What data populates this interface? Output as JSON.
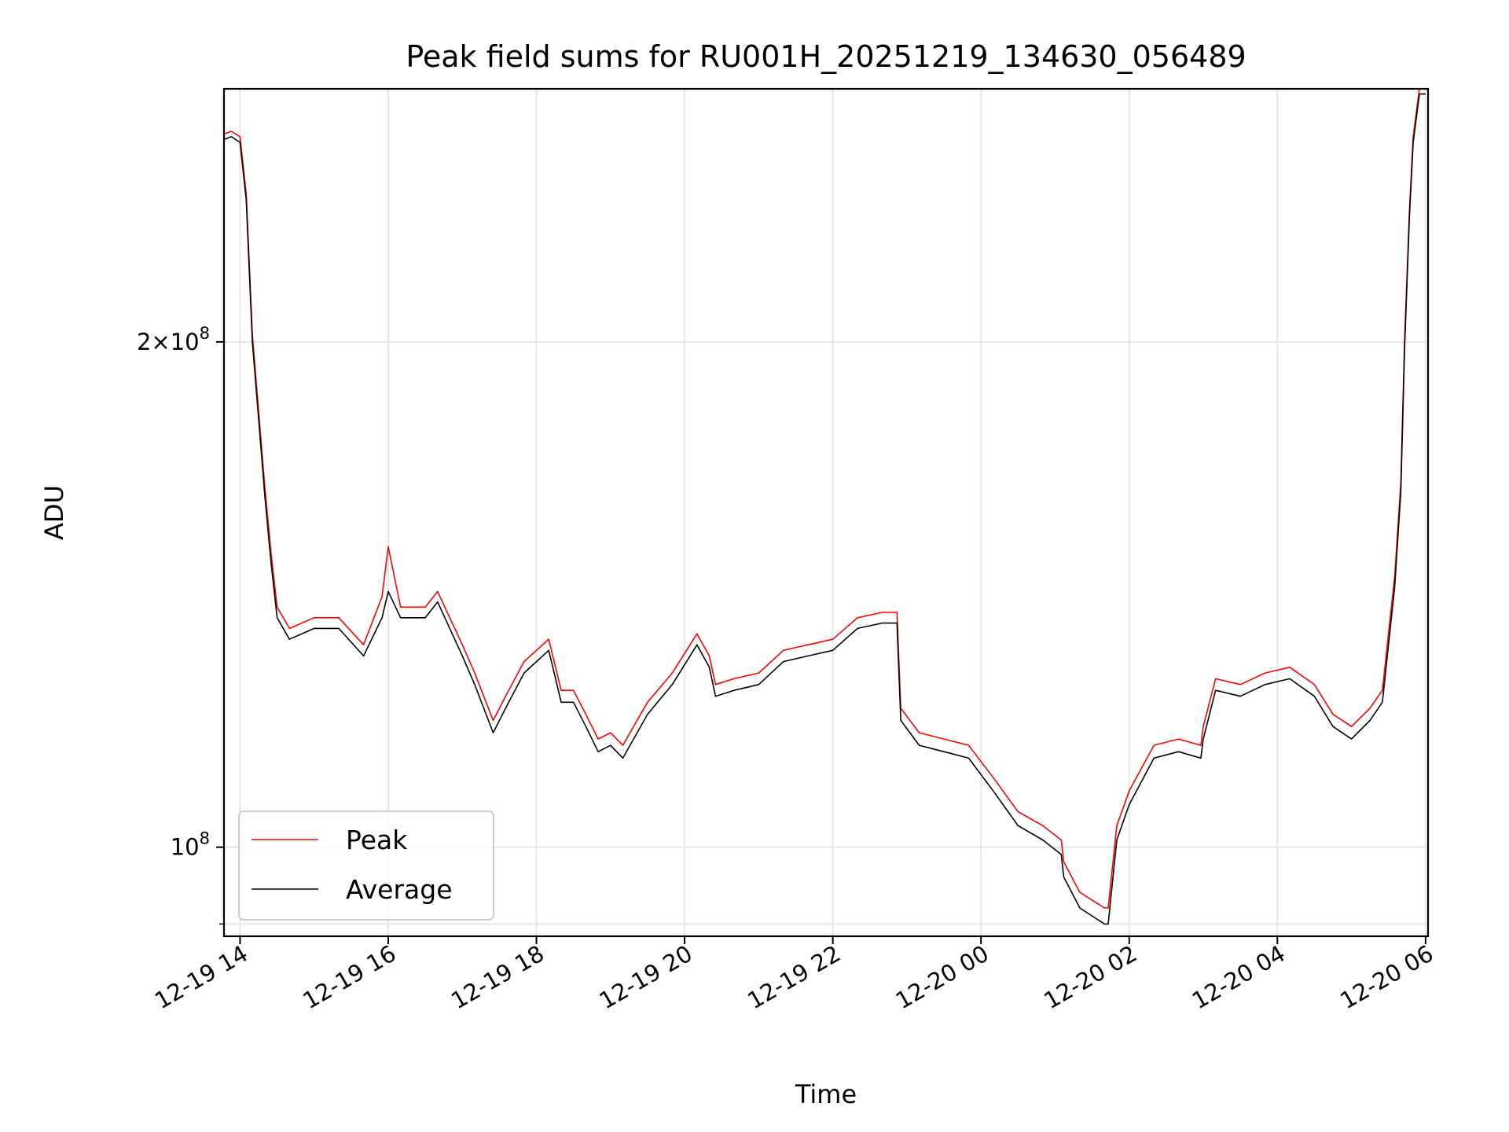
{
  "chart_data": {
    "type": "line",
    "title": "Peak field sums for RU001H_20251219_134630_056489",
    "xlabel": "Time",
    "ylabel": "ADU",
    "y_scale": "log",
    "ylim": [
      88500000,
      283000000
    ],
    "xlim": [
      "2025-12-19 13:47",
      "2025-12-20 06:02"
    ],
    "grid": true,
    "legend_position": "lower-left",
    "x_tick_labels": [
      "12-19 14",
      "12-19 16",
      "12-19 18",
      "12-19 20",
      "12-19 22",
      "12-20 00",
      "12-20 02",
      "12-20 04",
      "12-20 06"
    ],
    "x_ticks": [
      "2025-12-19 14:00",
      "2025-12-19 16:00",
      "2025-12-19 18:00",
      "2025-12-19 20:00",
      "2025-12-19 22:00",
      "2025-12-20 00:00",
      "2025-12-20 02:00",
      "2025-12-20 04:00",
      "2025-12-20 06:00"
    ],
    "y_ticks": [
      {
        "value": 200000000,
        "mantissa": "2",
        "exponent": "8"
      },
      {
        "value": 100000000,
        "mantissa": "",
        "exponent": "8"
      }
    ],
    "series": [
      {
        "name": "Peak",
        "color": "#ff0000",
        "x": [
          "2025-12-19 13:47",
          "2025-12-19 13:53",
          "2025-12-19 14:00",
          "2025-12-19 14:05",
          "2025-12-19 14:10",
          "2025-12-19 14:15",
          "2025-12-19 14:20",
          "2025-12-19 14:25",
          "2025-12-19 14:30",
          "2025-12-19 14:40",
          "2025-12-19 15:00",
          "2025-12-19 15:20",
          "2025-12-19 15:40",
          "2025-12-19 15:55",
          "2025-12-19 16:00",
          "2025-12-19 16:10",
          "2025-12-19 16:30",
          "2025-12-19 16:40",
          "2025-12-19 17:00",
          "2025-12-19 17:10",
          "2025-12-19 17:25",
          "2025-12-19 17:35",
          "2025-12-19 17:50",
          "2025-12-19 18:10",
          "2025-12-19 18:20",
          "2025-12-19 18:30",
          "2025-12-19 18:40",
          "2025-12-19 18:50",
          "2025-12-19 19:00",
          "2025-12-19 19:10",
          "2025-12-19 19:30",
          "2025-12-19 19:50",
          "2025-12-19 20:10",
          "2025-12-19 20:20",
          "2025-12-19 20:25",
          "2025-12-19 20:40",
          "2025-12-19 21:00",
          "2025-12-19 21:20",
          "2025-12-19 21:40",
          "2025-12-19 22:00",
          "2025-12-19 22:20",
          "2025-12-19 22:40",
          "2025-12-19 22:52",
          "2025-12-19 22:55",
          "2025-12-19 23:10",
          "2025-12-19 23:30",
          "2025-12-19 23:50",
          "2025-12-20 00:10",
          "2025-12-20 00:30",
          "2025-12-20 00:50",
          "2025-12-20 01:05",
          "2025-12-20 01:07",
          "2025-12-20 01:20",
          "2025-12-20 01:40",
          "2025-12-20 01:43",
          "2025-12-20 01:50",
          "2025-12-20 02:00",
          "2025-12-20 02:20",
          "2025-12-20 02:40",
          "2025-12-20 02:58",
          "2025-12-20 03:00",
          "2025-12-20 03:10",
          "2025-12-20 03:30",
          "2025-12-20 03:50",
          "2025-12-20 04:10",
          "2025-12-20 04:30",
          "2025-12-20 04:45",
          "2025-12-20 05:00",
          "2025-12-20 05:15",
          "2025-12-20 05:25",
          "2025-12-20 05:35",
          "2025-12-20 05:40",
          "2025-12-20 05:43",
          "2025-12-20 05:47",
          "2025-12-20 05:50",
          "2025-12-20 05:55",
          "2025-12-20 06:00"
        ],
        "values": [
          266000000,
          267000000,
          265000000,
          245000000,
          202000000,
          182000000,
          164000000,
          150000000,
          139000000,
          135000000,
          137000000,
          137000000,
          132000000,
          141000000,
          151000000,
          139000000,
          139000000,
          142000000,
          132000000,
          127000000,
          119000000,
          123000000,
          129000000,
          133000000,
          124000000,
          124000000,
          120000000,
          116000000,
          117000000,
          115000000,
          122000000,
          127000000,
          134000000,
          130000000,
          125000000,
          126000000,
          127000000,
          131000000,
          132000000,
          133000000,
          137000000,
          138000000,
          138000000,
          121000000,
          117000000,
          116000000,
          115000000,
          110000000,
          105000000,
          103000000,
          101000000,
          98000000,
          94000000,
          92000000,
          92000000,
          103000000,
          108000000,
          115000000,
          116000000,
          115000000,
          118000000,
          126000000,
          125000000,
          127000000,
          128000000,
          125000000,
          120000000,
          118000000,
          121000000,
          124000000,
          145000000,
          165000000,
          200000000,
          240000000,
          265000000,
          283000000,
          283000000
        ]
      },
      {
        "name": "Average",
        "color": "#000000",
        "x": [
          "2025-12-19 13:47",
          "2025-12-19 13:53",
          "2025-12-19 14:00",
          "2025-12-19 14:05",
          "2025-12-19 14:10",
          "2025-12-19 14:15",
          "2025-12-19 14:20",
          "2025-12-19 14:25",
          "2025-12-19 14:30",
          "2025-12-19 14:40",
          "2025-12-19 15:00",
          "2025-12-19 15:20",
          "2025-12-19 15:40",
          "2025-12-19 15:55",
          "2025-12-19 16:00",
          "2025-12-19 16:10",
          "2025-12-19 16:30",
          "2025-12-19 16:40",
          "2025-12-19 17:00",
          "2025-12-19 17:10",
          "2025-12-19 17:25",
          "2025-12-19 17:35",
          "2025-12-19 17:50",
          "2025-12-19 18:10",
          "2025-12-19 18:20",
          "2025-12-19 18:30",
          "2025-12-19 18:40",
          "2025-12-19 18:50",
          "2025-12-19 19:00",
          "2025-12-19 19:10",
          "2025-12-19 19:30",
          "2025-12-19 19:50",
          "2025-12-19 20:10",
          "2025-12-19 20:20",
          "2025-12-19 20:25",
          "2025-12-19 20:40",
          "2025-12-19 21:00",
          "2025-12-19 21:20",
          "2025-12-19 21:40",
          "2025-12-19 22:00",
          "2025-12-19 22:20",
          "2025-12-19 22:40",
          "2025-12-19 22:52",
          "2025-12-19 22:55",
          "2025-12-19 23:10",
          "2025-12-19 23:30",
          "2025-12-19 23:50",
          "2025-12-20 00:10",
          "2025-12-20 00:30",
          "2025-12-20 00:50",
          "2025-12-20 01:05",
          "2025-12-20 01:07",
          "2025-12-20 01:20",
          "2025-12-20 01:40",
          "2025-12-20 01:43",
          "2025-12-20 01:50",
          "2025-12-20 02:00",
          "2025-12-20 02:20",
          "2025-12-20 02:40",
          "2025-12-20 02:58",
          "2025-12-20 03:00",
          "2025-12-20 03:10",
          "2025-12-20 03:30",
          "2025-12-20 03:50",
          "2025-12-20 04:10",
          "2025-12-20 04:30",
          "2025-12-20 04:45",
          "2025-12-20 05:00",
          "2025-12-20 05:15",
          "2025-12-20 05:25",
          "2025-12-20 05:35",
          "2025-12-20 05:40",
          "2025-12-20 05:43",
          "2025-12-20 05:47",
          "2025-12-20 05:50",
          "2025-12-20 05:55",
          "2025-12-20 06:00"
        ],
        "values": [
          264000000,
          265000000,
          263000000,
          243000000,
          200000000,
          180000000,
          162000000,
          148000000,
          137000000,
          133000000,
          135000000,
          135000000,
          130000000,
          137000000,
          142000000,
          137000000,
          137000000,
          140000000,
          130000000,
          125000000,
          117000000,
          121000000,
          127000000,
          131000000,
          122000000,
          122000000,
          118000000,
          114000000,
          115000000,
          113000000,
          120000000,
          125000000,
          132000000,
          128000000,
          123000000,
          124000000,
          125000000,
          129000000,
          130000000,
          131000000,
          135000000,
          136000000,
          136000000,
          119000000,
          115000000,
          114000000,
          113000000,
          108000000,
          103000000,
          101000000,
          99000000,
          96000000,
          92000000,
          90000000,
          90000000,
          101000000,
          106000000,
          113000000,
          114000000,
          113000000,
          116000000,
          124000000,
          123000000,
          125000000,
          126000000,
          123000000,
          118000000,
          116000000,
          119000000,
          122000000,
          143000000,
          163000000,
          198000000,
          238000000,
          263000000,
          281000000,
          281000000
        ]
      }
    ]
  }
}
